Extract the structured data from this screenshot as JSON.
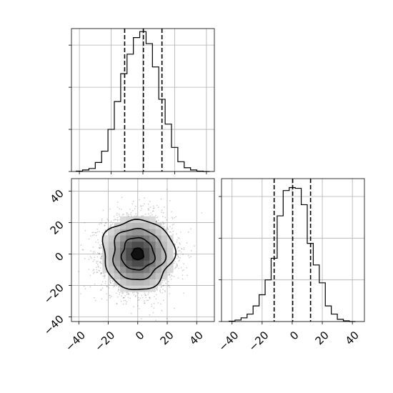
{
  "chart_data": {
    "type": "corner",
    "panels": [
      {
        "id": "hist-x",
        "type": "histogram",
        "xlim": [
          -45,
          45
        ],
        "bins": [
          -42,
          -38,
          -34,
          -30,
          -26,
          -22,
          -18,
          -14,
          -10,
          -6,
          -2,
          2,
          6,
          10,
          14,
          18,
          22,
          26,
          30,
          34,
          38,
          42
        ],
        "counts": [
          0.5,
          2,
          4,
          12,
          27,
          56,
          93,
          130,
          156,
          178,
          186,
          170,
          139,
          96,
          63,
          32,
          13,
          5,
          2,
          0.5,
          0
        ],
        "quantiles": [
          -11.5,
          0.3,
          12.0
        ],
        "ylim": [
          0,
          190
        ],
        "yticks": [
          0,
          56,
          112,
          168
        ],
        "xticks": [
          -40,
          -20,
          0,
          20,
          40
        ],
        "grid": true
      },
      {
        "id": "hist-y",
        "type": "histogram",
        "xlim": [
          -47,
          48
        ],
        "bins": [
          -42,
          -38,
          -34,
          -30,
          -26,
          -22,
          -18,
          -14,
          -10,
          -6,
          -2,
          2,
          6,
          10,
          14,
          18,
          22,
          26,
          30,
          34,
          38,
          42
        ],
        "counts": [
          0.5,
          2,
          5,
          10,
          21,
          36,
          56,
          85,
          142,
          176,
          180,
          179,
          157,
          105,
          76,
          52,
          21,
          10,
          3,
          1,
          0
        ],
        "quantiles": [
          -12.0,
          0.3,
          12.2
        ],
        "ylim": [
          0,
          192
        ],
        "yticks": [
          0,
          56,
          112,
          168
        ],
        "xticks": [
          -40,
          -20,
          0,
          20,
          40
        ],
        "xtick_labels": [
          "−40",
          "−20",
          "0",
          "20",
          "40"
        ],
        "grid": true
      },
      {
        "id": "joint",
        "type": "scatter-density-contour",
        "xlim": [
          -45,
          52
        ],
        "ylim": [
          -43,
          48
        ],
        "xticks": [
          -40,
          -20,
          0,
          20,
          40
        ],
        "xtick_labels": [
          "−40",
          "−20",
          "0",
          "20",
          "40"
        ],
        "yticks": [
          -40,
          -20,
          0,
          20,
          40
        ],
        "ytick_labels": [
          "−40",
          "−20",
          "0",
          "20",
          "40"
        ],
        "center": [
          0,
          0
        ],
        "sigma": 12,
        "contour_radii": [
          24,
          17.5,
          11,
          4
        ],
        "grid": true
      }
    ]
  }
}
